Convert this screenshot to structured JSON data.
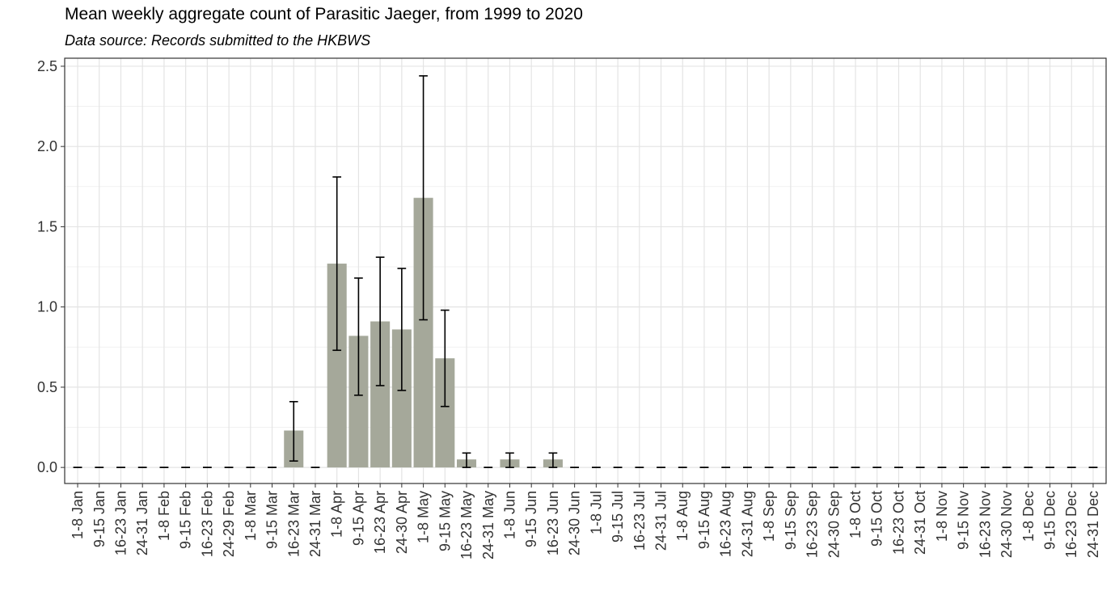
{
  "chart_data": {
    "type": "bar",
    "title": "Mean weekly aggregate count of Parasitic Jaeger, from 1999 to 2020",
    "subtitle": "Data source: Records submitted to the HKBWS",
    "xlabel": "",
    "ylabel": "",
    "ylim": [
      -0.1,
      2.55
    ],
    "yticks": [
      0.0,
      0.5,
      1.0,
      1.5,
      2.0,
      2.5
    ],
    "ytick_labels": [
      "0.0",
      "0.5",
      "1.0",
      "1.5",
      "2.0",
      "2.5"
    ],
    "grid": true,
    "bar_color": "#a5a89a",
    "error_bar_color": "#000000",
    "categories": [
      "1-8 Jan",
      "9-15 Jan",
      "16-23 Jan",
      "24-31 Jan",
      "1-8 Feb",
      "9-15 Feb",
      "16-23 Feb",
      "24-29 Feb",
      "1-8 Mar",
      "9-15 Mar",
      "16-23 Mar",
      "24-31 Mar",
      "1-8 Apr",
      "9-15 Apr",
      "16-23 Apr",
      "24-30 Apr",
      "1-8 May",
      "9-15 May",
      "16-23 May",
      "24-31 May",
      "1-8 Jun",
      "9-15 Jun",
      "16-23 Jun",
      "24-30 Jun",
      "1-8 Jul",
      "9-15 Jul",
      "16-23 Jul",
      "24-31 Jul",
      "1-8 Aug",
      "9-15 Aug",
      "16-23 Aug",
      "24-31 Aug",
      "1-8 Sep",
      "9-15 Sep",
      "16-23 Sep",
      "24-30 Sep",
      "1-8 Oct",
      "9-15 Oct",
      "16-23 Oct",
      "24-31 Oct",
      "1-8 Nov",
      "9-15 Nov",
      "16-23 Nov",
      "24-30 Nov",
      "1-8 Dec",
      "9-15 Dec",
      "16-23 Dec",
      "24-31 Dec"
    ],
    "values": [
      0,
      0,
      0,
      0,
      0,
      0,
      0,
      0,
      0,
      0,
      0.23,
      0,
      1.27,
      0.82,
      0.91,
      0.86,
      1.68,
      0.68,
      0.05,
      0,
      0.05,
      0,
      0.05,
      0,
      0,
      0,
      0,
      0,
      0,
      0,
      0,
      0,
      0,
      0,
      0,
      0,
      0,
      0,
      0,
      0,
      0,
      0,
      0,
      0,
      0,
      0,
      0,
      0
    ],
    "error_low": [
      0,
      0,
      0,
      0,
      0,
      0,
      0,
      0,
      0,
      0,
      0.04,
      0,
      0.73,
      0.45,
      0.51,
      0.48,
      0.92,
      0.38,
      0,
      0,
      0,
      0,
      0,
      0,
      0,
      0,
      0,
      0,
      0,
      0,
      0,
      0,
      0,
      0,
      0,
      0,
      0,
      0,
      0,
      0,
      0,
      0,
      0,
      0,
      0,
      0,
      0,
      0
    ],
    "error_high": [
      0,
      0,
      0,
      0,
      0,
      0,
      0,
      0,
      0,
      0,
      0.41,
      0,
      1.81,
      1.18,
      1.31,
      1.24,
      2.44,
      0.98,
      0.09,
      0,
      0.09,
      0,
      0.09,
      0,
      0,
      0,
      0,
      0,
      0,
      0,
      0,
      0,
      0,
      0,
      0,
      0,
      0,
      0,
      0,
      0,
      0,
      0,
      0,
      0,
      0,
      0,
      0,
      0
    ]
  }
}
